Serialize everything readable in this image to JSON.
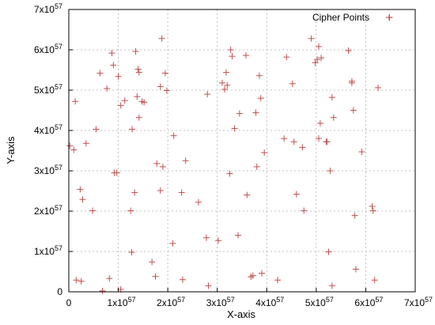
{
  "chart_data": {
    "type": "scatter",
    "xlabel": "X-axis",
    "ylabel": "Y-axis",
    "xlim": [
      0,
      7
    ],
    "ylim": [
      0,
      7
    ],
    "scale_label": "×10^57",
    "x_ticks": [
      {
        "value": 0,
        "mantissa": "0",
        "exp": ""
      },
      {
        "value": 1,
        "mantissa": "1x10",
        "exp": "57"
      },
      {
        "value": 2,
        "mantissa": "2x10",
        "exp": "57"
      },
      {
        "value": 3,
        "mantissa": "3x10",
        "exp": "57"
      },
      {
        "value": 4,
        "mantissa": "4x10",
        "exp": "57"
      },
      {
        "value": 5,
        "mantissa": "5x10",
        "exp": "57"
      },
      {
        "value": 6,
        "mantissa": "6x10",
        "exp": "57"
      },
      {
        "value": 7,
        "mantissa": "7x10",
        "exp": "57"
      }
    ],
    "y_ticks": [
      {
        "value": 0,
        "mantissa": "0",
        "exp": ""
      },
      {
        "value": 1,
        "mantissa": "1x10",
        "exp": "57"
      },
      {
        "value": 2,
        "mantissa": "2x10",
        "exp": "57"
      },
      {
        "value": 3,
        "mantissa": "3x10",
        "exp": "57"
      },
      {
        "value": 4,
        "mantissa": "4x10",
        "exp": "57"
      },
      {
        "value": 5,
        "mantissa": "5x10",
        "exp": "57"
      },
      {
        "value": 6,
        "mantissa": "6x10",
        "exp": "57"
      },
      {
        "value": 7,
        "mantissa": "7x10",
        "exp": "57"
      }
    ],
    "grid": true,
    "legend_position": "top-right",
    "series": [
      {
        "name": "Cipher Points",
        "color": "#c0504d",
        "marker": "plus",
        "points": [
          [
            0.02,
            3.62
          ],
          [
            0.13,
            4.72
          ],
          [
            0.23,
            2.54
          ],
          [
            0.28,
            2.29
          ],
          [
            0.35,
            3.68
          ],
          [
            0.48,
            2.01
          ],
          [
            0.55,
            4.03
          ],
          [
            0.63,
            5.42
          ],
          [
            0.77,
            5.04
          ],
          [
            0.87,
            5.92
          ],
          [
            0.9,
            5.62
          ],
          [
            0.92,
            2.95
          ],
          [
            0.97,
            2.95
          ],
          [
            1.0,
            5.34
          ],
          [
            1.05,
            4.62
          ],
          [
            1.13,
            4.74
          ],
          [
            1.25,
            2.01
          ],
          [
            1.28,
            4.03
          ],
          [
            1.33,
            2.46
          ],
          [
            1.35,
            5.96
          ],
          [
            1.38,
            4.84
          ],
          [
            1.4,
            5.52
          ],
          [
            1.42,
            5.44
          ],
          [
            1.42,
            4.32
          ],
          [
            1.48,
            4.72
          ],
          [
            1.27,
            0.98
          ],
          [
            1.68,
            0.74
          ],
          [
            1.78,
            3.18
          ],
          [
            1.85,
            5.09
          ],
          [
            1.85,
            2.51
          ],
          [
            1.88,
            6.28
          ],
          [
            1.9,
            3.1
          ],
          [
            1.98,
            4.99
          ],
          [
            1.95,
            5.42
          ],
          [
            2.12,
            3.87
          ],
          [
            2.1,
            1.2
          ],
          [
            2.28,
            2.46
          ],
          [
            2.36,
            3.25
          ],
          [
            2.62,
            2.22
          ],
          [
            2.78,
            1.34
          ],
          [
            2.8,
            4.9
          ],
          [
            3.02,
            1.27
          ],
          [
            3.1,
            5.18
          ],
          [
            3.18,
            5.44
          ],
          [
            3.15,
            5.02
          ],
          [
            3.2,
            5.12
          ],
          [
            3.25,
            2.93
          ],
          [
            3.27,
            6.0
          ],
          [
            3.3,
            5.84
          ],
          [
            3.35,
            4.05
          ],
          [
            3.42,
            1.4
          ],
          [
            3.45,
            4.42
          ],
          [
            3.58,
            5.86
          ],
          [
            3.6,
            2.4
          ],
          [
            3.72,
            0.4
          ],
          [
            3.78,
            4.44
          ],
          [
            3.8,
            3.1
          ],
          [
            3.85,
            5.36
          ],
          [
            3.88,
            4.8
          ],
          [
            3.9,
            0.46
          ],
          [
            3.95,
            3.45
          ],
          [
            4.22,
            0.29
          ],
          [
            4.35,
            3.8
          ],
          [
            4.4,
            5.82
          ],
          [
            4.52,
            5.16
          ],
          [
            4.55,
            3.72
          ],
          [
            4.6,
            2.42
          ],
          [
            4.72,
            3.58
          ],
          [
            4.75,
            2.01
          ],
          [
            4.9,
            6.28
          ],
          [
            4.98,
            5.68
          ],
          [
            5.02,
            5.76
          ],
          [
            5.05,
            6.08
          ],
          [
            5.1,
            5.8
          ],
          [
            5.08,
            4.18
          ],
          [
            5.05,
            3.8
          ],
          [
            5.2,
            3.72
          ],
          [
            5.22,
            3.72
          ],
          [
            5.25,
            0.99
          ],
          [
            5.28,
            3.0
          ],
          [
            5.32,
            4.82
          ],
          [
            5.35,
            4.32
          ],
          [
            5.65,
            5.98
          ],
          [
            5.72,
            5.18
          ],
          [
            5.75,
            4.5
          ],
          [
            5.78,
            1.89
          ],
          [
            5.8,
            0.56
          ],
          [
            5.92,
            3.47
          ],
          [
            6.13,
            2.12
          ],
          [
            6.15,
            2.01
          ],
          [
            6.18,
            0.29
          ],
          [
            6.25,
            5.06
          ],
          [
            6.48,
            6.8
          ],
          [
            0.1,
            3.52
          ],
          [
            0.15,
            0.29
          ],
          [
            0.25,
            0.26
          ],
          [
            0.68,
            0.02
          ],
          [
            0.82,
            0.33
          ],
          [
            1.05,
            0.06
          ],
          [
            1.75,
            0.38
          ],
          [
            2.3,
            0.3
          ],
          [
            2.82,
            0.15
          ],
          [
            3.68,
            0.37
          ],
          [
            5.32,
            0.15
          ],
          [
            5.72,
            5.22
          ],
          [
            1.52,
            4.7
          ]
        ]
      }
    ]
  }
}
